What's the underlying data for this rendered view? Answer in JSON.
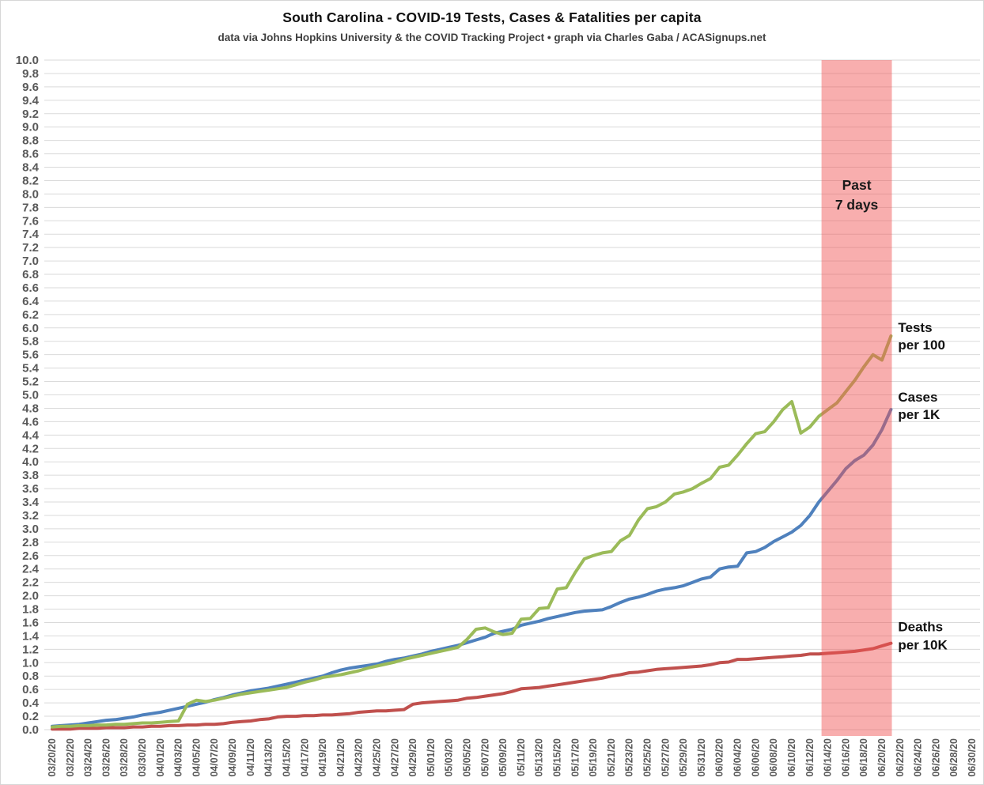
{
  "header": {
    "title": "South Carolina - COVID-19 Tests, Cases & Fatalities per capita",
    "subtitle": "data via Johns Hopkins University & the COVID Tracking Project • graph via Charles Gaba / ACASignups.net"
  },
  "chart_data": {
    "type": "line",
    "title": "South Carolina - COVID-19 Tests, Cases & Fatalities per capita",
    "subtitle": "data via Johns Hopkins University & the COVID Tracking Project • graph via Charles Gaba / ACASignups.net",
    "grid": true,
    "legend_position": "line-end-labels",
    "x_axis": {
      "start_date": "03/20/20",
      "end_date": "06/30/20",
      "tick_day_step": 2,
      "total_days": 102,
      "tick_labels": [
        "03/20/20",
        "03/22/20",
        "03/24/20",
        "03/26/20",
        "03/28/20",
        "03/30/20",
        "04/01/20",
        "04/03/20",
        "04/05/20",
        "04/07/20",
        "04/09/20",
        "04/11/20",
        "04/13/20",
        "04/15/20",
        "04/17/20",
        "04/19/20",
        "04/21/20",
        "04/23/20",
        "04/25/20",
        "04/27/20",
        "04/29/20",
        "05/01/20",
        "05/03/20",
        "05/05/20",
        "05/07/20",
        "05/09/20",
        "05/11/20",
        "05/13/20",
        "05/15/20",
        "05/17/20",
        "05/19/20",
        "05/21/20",
        "05/23/20",
        "05/25/20",
        "05/27/20",
        "05/29/20",
        "05/31/20",
        "06/02/20",
        "06/04/20",
        "06/06/20",
        "06/08/20",
        "06/10/20",
        "06/12/20",
        "06/14/20",
        "06/16/20",
        "06/18/20",
        "06/20/20",
        "06/22/20",
        "06/24/20",
        "06/26/20",
        "06/28/20",
        "06/30/20"
      ]
    },
    "y_axis": {
      "min": 0.0,
      "max": 10.0,
      "tick_step": 0.2
    },
    "series": [
      {
        "key": "cases-per-1k",
        "name": "Cases per 1K",
        "label_lines": [
          "Cases",
          "per 1K"
        ],
        "color": "#4F81BD",
        "label_dy": [
          -10,
          12
        ],
        "values": [
          0.05,
          0.06,
          0.07,
          0.08,
          0.1,
          0.12,
          0.14,
          0.15,
          0.17,
          0.19,
          0.22,
          0.24,
          0.26,
          0.29,
          0.32,
          0.35,
          0.38,
          0.41,
          0.45,
          0.48,
          0.52,
          0.55,
          0.58,
          0.6,
          0.62,
          0.65,
          0.68,
          0.71,
          0.74,
          0.77,
          0.8,
          0.85,
          0.89,
          0.92,
          0.94,
          0.96,
          0.98,
          1.02,
          1.05,
          1.07,
          1.1,
          1.13,
          1.17,
          1.2,
          1.23,
          1.26,
          1.3,
          1.34,
          1.38,
          1.44,
          1.47,
          1.5,
          1.56,
          1.59,
          1.62,
          1.66,
          1.69,
          1.72,
          1.75,
          1.77,
          1.78,
          1.79,
          1.84,
          1.9,
          1.95,
          1.98,
          2.02,
          2.07,
          2.1,
          2.12,
          2.15,
          2.2,
          2.25,
          2.28,
          2.4,
          2.43,
          2.44,
          2.64,
          2.66,
          2.72,
          2.81,
          2.88,
          2.95,
          3.05,
          3.2,
          3.4,
          3.56,
          3.72,
          3.9,
          4.02,
          4.1,
          4.25,
          4.48,
          4.78
        ]
      },
      {
        "key": "deaths-per-10k",
        "name": "Deaths per 10K",
        "label_lines": [
          "Deaths",
          "per 10K"
        ],
        "color": "#C0504D",
        "label_dy": [
          -15,
          8
        ],
        "values": [
          0.01,
          0.01,
          0.01,
          0.02,
          0.02,
          0.02,
          0.03,
          0.03,
          0.03,
          0.04,
          0.04,
          0.05,
          0.05,
          0.06,
          0.06,
          0.07,
          0.07,
          0.08,
          0.08,
          0.09,
          0.11,
          0.12,
          0.13,
          0.15,
          0.16,
          0.19,
          0.2,
          0.2,
          0.21,
          0.21,
          0.22,
          0.22,
          0.23,
          0.24,
          0.26,
          0.27,
          0.28,
          0.28,
          0.29,
          0.3,
          0.38,
          0.4,
          0.41,
          0.42,
          0.43,
          0.44,
          0.47,
          0.48,
          0.5,
          0.52,
          0.54,
          0.57,
          0.61,
          0.62,
          0.63,
          0.65,
          0.67,
          0.69,
          0.71,
          0.73,
          0.75,
          0.77,
          0.8,
          0.82,
          0.85,
          0.86,
          0.88,
          0.9,
          0.91,
          0.92,
          0.93,
          0.94,
          0.95,
          0.97,
          1.0,
          1.01,
          1.05,
          1.05,
          1.06,
          1.07,
          1.08,
          1.09,
          1.1,
          1.11,
          1.13,
          1.13,
          1.14,
          1.15,
          1.16,
          1.17,
          1.19,
          1.21,
          1.25,
          1.29
        ]
      },
      {
        "key": "tests-per-100",
        "name": "Tests per 100",
        "label_lines": [
          "Tests",
          "per 100"
        ],
        "color": "#9BBB59",
        "label_dy": [
          -5,
          17
        ],
        "values": [
          0.04,
          0.05,
          0.05,
          0.06,
          0.06,
          0.07,
          0.07,
          0.08,
          0.08,
          0.09,
          0.1,
          0.1,
          0.11,
          0.12,
          0.13,
          0.38,
          0.44,
          0.42,
          0.44,
          0.47,
          0.5,
          0.53,
          0.55,
          0.57,
          0.59,
          0.61,
          0.63,
          0.67,
          0.71,
          0.74,
          0.78,
          0.8,
          0.82,
          0.85,
          0.88,
          0.92,
          0.95,
          0.98,
          1.01,
          1.05,
          1.08,
          1.11,
          1.14,
          1.17,
          1.2,
          1.23,
          1.35,
          1.5,
          1.52,
          1.46,
          1.42,
          1.44,
          1.65,
          1.66,
          1.81,
          1.82,
          2.1,
          2.12,
          2.35,
          2.55,
          2.6,
          2.64,
          2.66,
          2.82,
          2.9,
          3.13,
          3.3,
          3.33,
          3.4,
          3.52,
          3.55,
          3.6,
          3.68,
          3.75,
          3.92,
          3.95,
          4.1,
          4.27,
          4.42,
          4.45,
          4.6,
          4.78,
          4.9,
          4.43,
          4.52,
          4.68,
          4.78,
          4.88,
          5.05,
          5.22,
          5.42,
          5.6,
          5.52,
          5.88
        ]
      }
    ],
    "annotation_band": {
      "label_lines": [
        "Past",
        "7 days"
      ],
      "start_day": 85.3,
      "end_day": 93.1,
      "fill_color": "rgba(240,82,82,0.47)",
      "text_color": "#1a1a1a"
    },
    "style": {
      "grid_color": "#dadada",
      "tick_label_color": "#595959",
      "line_width": 4
    }
  }
}
